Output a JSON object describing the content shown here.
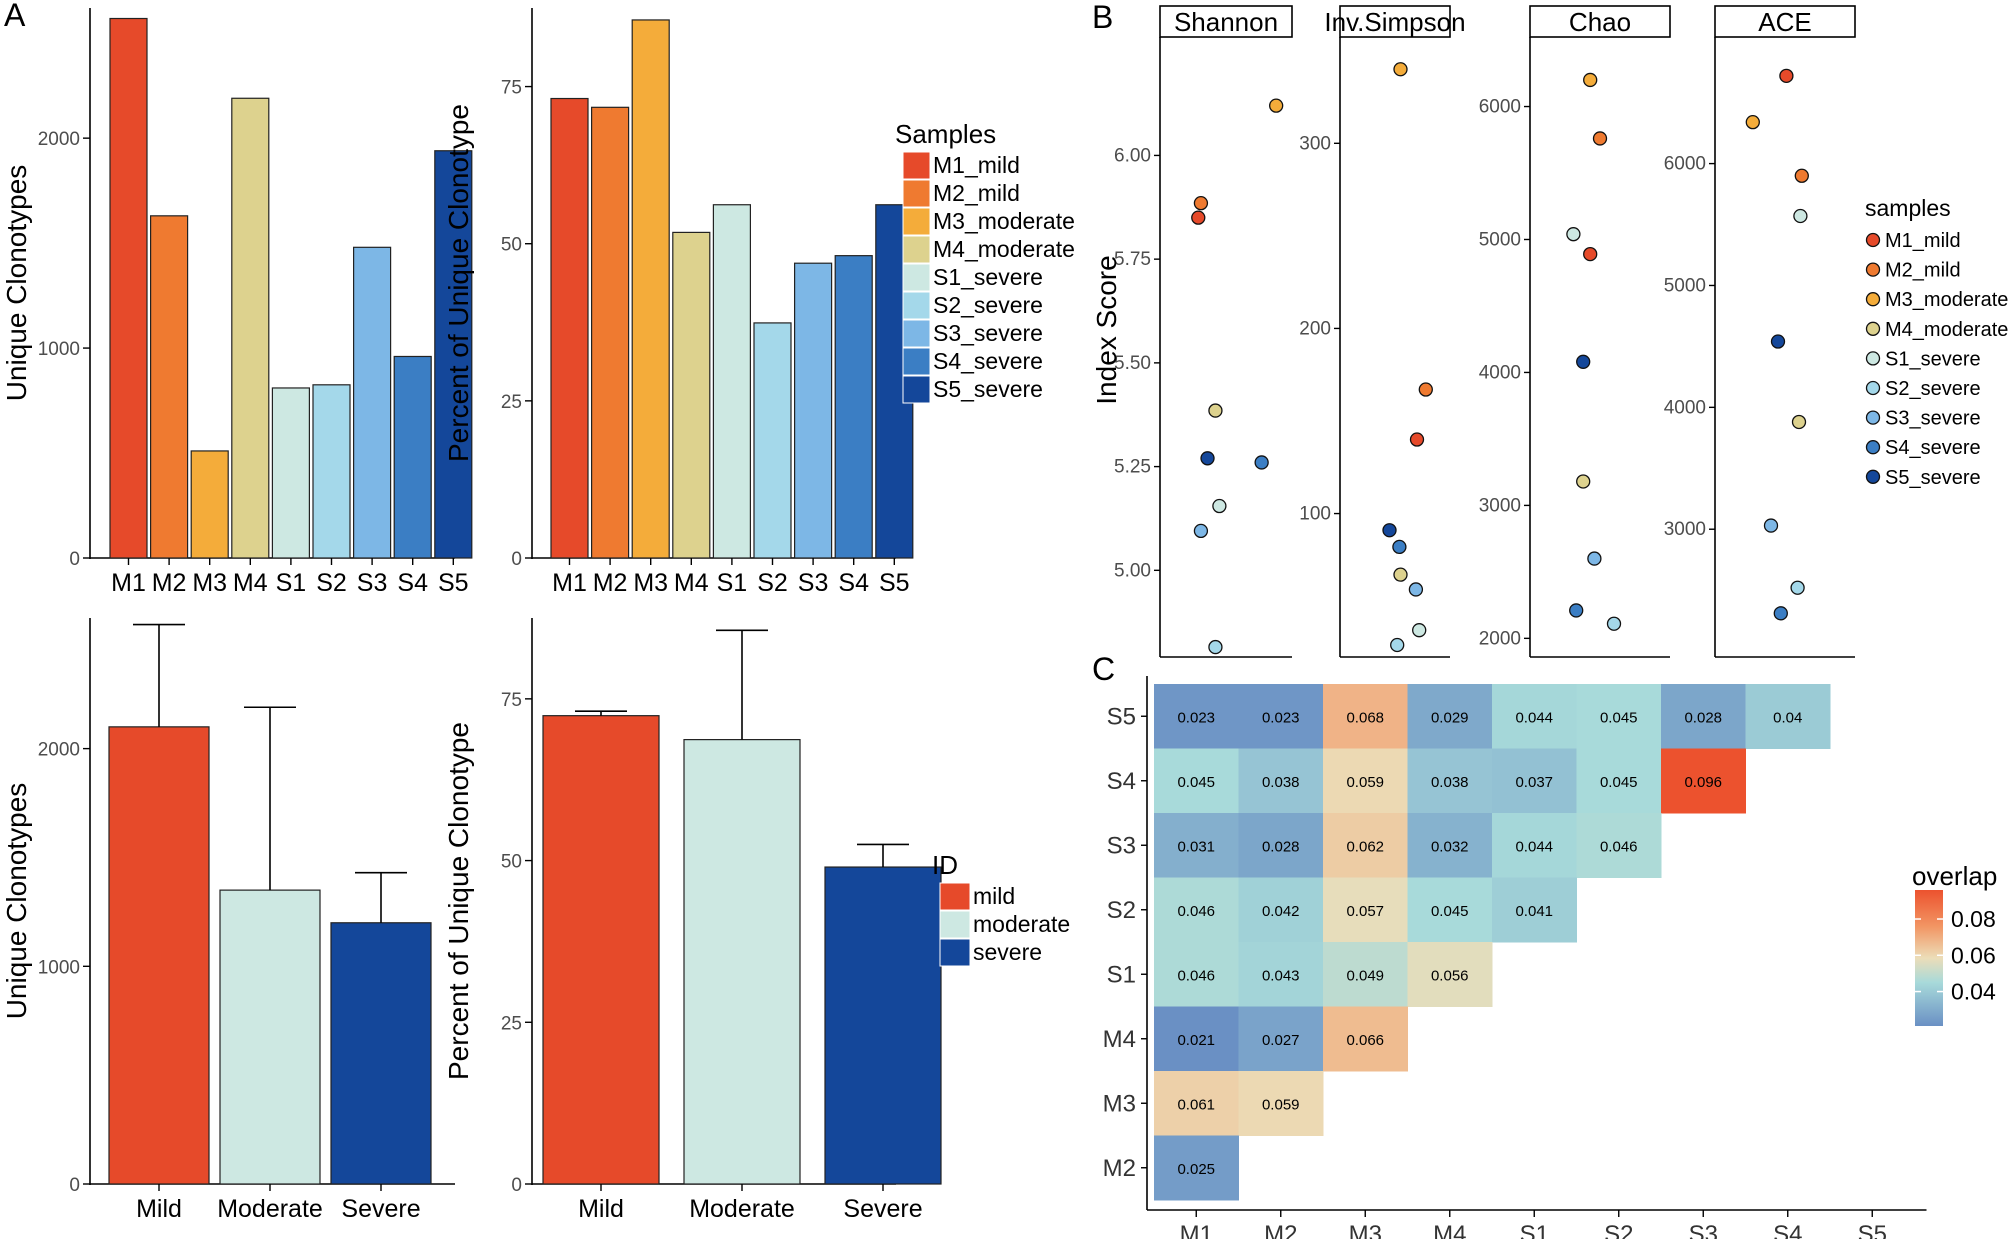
{
  "panels": {
    "A": "A",
    "B": "B",
    "C": "C"
  },
  "colors": {
    "M1_mild": "#e64a2a",
    "M2_mild": "#ef7a30",
    "M3_moderate": "#f4ac3a",
    "M4_moderate": "#ddd28e",
    "S1_severe": "#cde8e2",
    "S2_severe": "#a4d8ea",
    "S3_severe": "#7db7e6",
    "S4_severe": "#3b7ec4",
    "S5_severe": "#14479a",
    "mild": "#e64a2a",
    "moderate": "#cde8e2",
    "severe": "#14479a"
  },
  "chart_data": [
    {
      "id": "A1",
      "type": "bar",
      "categories": [
        "M1",
        "M2",
        "M3",
        "M4",
        "S1",
        "S2",
        "S3",
        "S4",
        "S5"
      ],
      "series_keys": [
        "M1_mild",
        "M2_mild",
        "M3_moderate",
        "M4_moderate",
        "S1_severe",
        "S2_severe",
        "S3_severe",
        "S4_severe",
        "S5_severe"
      ],
      "values": [
        2570,
        1630,
        510,
        2190,
        810,
        825,
        1480,
        960,
        1940
      ],
      "ylabel": "Unique Clonotypes",
      "ylim": [
        0,
        2620
      ],
      "yticks": [
        0,
        1000,
        2000
      ]
    },
    {
      "id": "A2",
      "type": "bar",
      "categories": [
        "M1",
        "M2",
        "M3",
        "M4",
        "S1",
        "S2",
        "S3",
        "S4",
        "S5"
      ],
      "series_keys": [
        "M1_mild",
        "M2_mild",
        "M3_moderate",
        "M4_moderate",
        "S1_severe",
        "S2_severe",
        "S3_severe",
        "S4_severe",
        "S5_severe"
      ],
      "values": [
        73.1,
        71.7,
        85.6,
        51.8,
        56.2,
        37.4,
        46.9,
        48.1,
        56.2
      ],
      "ylabel": "Percent of Unique Clonotype",
      "ylim": [
        0,
        87.5
      ],
      "yticks": [
        0,
        25,
        50,
        75
      ],
      "legend_title": "Samples",
      "legend_labels": [
        "M1_mild",
        "M2_mild",
        "M3_moderate",
        "M4_moderate",
        "S1_severe",
        "S2_severe",
        "S3_severe",
        "S4_severe",
        "S5_severe"
      ]
    },
    {
      "id": "A3",
      "type": "bar",
      "categories": [
        "Mild",
        "Moderate",
        "Severe"
      ],
      "series_keys": [
        "mild",
        "moderate",
        "severe"
      ],
      "values": [
        2100,
        1350,
        1200
      ],
      "error_upper": [
        2570,
        2190,
        1430
      ],
      "ylabel": "Unique Clonotypes",
      "ylim": [
        0,
        2600
      ],
      "yticks": [
        0,
        1000,
        2000
      ]
    },
    {
      "id": "A4",
      "type": "bar",
      "categories": [
        "Mild",
        "Moderate",
        "Severe"
      ],
      "series_keys": [
        "mild",
        "moderate",
        "severe"
      ],
      "values": [
        72.4,
        68.7,
        49.0
      ],
      "error_upper": [
        73.1,
        85.6,
        52.5
      ],
      "ylabel": "Percent of Unique Clonotype",
      "ylim": [
        0,
        87.5
      ],
      "yticks": [
        0,
        25,
        50,
        75
      ],
      "legend_title": "ID",
      "legend_labels": [
        "mild",
        "moderate",
        "severe"
      ]
    },
    {
      "id": "B",
      "type": "scatter",
      "ylabel": "Index Score",
      "legend_title": "samples",
      "legend_labels": [
        "M1_mild",
        "M2_mild",
        "M3_moderate",
        "M4_moderate",
        "S1_severe",
        "S2_severe",
        "S3_severe",
        "S4_severe",
        "S5_severe"
      ],
      "facets": [
        {
          "title": "Shannon",
          "ylim": [
            4.82,
            6.23
          ],
          "yticks": [
            5.0,
            5.25,
            5.5,
            5.75,
            6.0
          ],
          "ytick_labels": [
            "5.00",
            "5.25",
            "5.50",
            "5.75",
            "6.00"
          ],
          "points": [
            {
              "key": "M1_mild",
              "x": 0.29,
              "y": 5.85
            },
            {
              "key": "M2_mild",
              "x": 0.31,
              "y": 5.885
            },
            {
              "key": "M3_moderate",
              "x": 0.88,
              "y": 6.12
            },
            {
              "key": "M4_moderate",
              "x": 0.42,
              "y": 5.385
            },
            {
              "key": "S1_severe",
              "x": 0.45,
              "y": 5.155
            },
            {
              "key": "S2_severe",
              "x": 0.42,
              "y": 4.815
            },
            {
              "key": "S3_severe",
              "x": 0.31,
              "y": 5.095
            },
            {
              "key": "S4_severe",
              "x": 0.77,
              "y": 5.26
            },
            {
              "key": "S5_severe",
              "x": 0.36,
              "y": 5.27
            }
          ]
        },
        {
          "title": "Inv.Simpson",
          "ylim": [
            29,
            345
          ],
          "yticks": [
            100,
            200,
            300
          ],
          "ytick_labels": [
            "100",
            "200",
            "300"
          ],
          "points": [
            {
              "key": "M1_mild",
              "x": 0.7,
              "y": 140
            },
            {
              "key": "M2_mild",
              "x": 0.78,
              "y": 167
            },
            {
              "key": "M3_moderate",
              "x": 0.55,
              "y": 340
            },
            {
              "key": "M4_moderate",
              "x": 0.55,
              "y": 67
            },
            {
              "key": "S1_severe",
              "x": 0.72,
              "y": 37
            },
            {
              "key": "S2_severe",
              "x": 0.52,
              "y": 29
            },
            {
              "key": "S3_severe",
              "x": 0.69,
              "y": 59
            },
            {
              "key": "S4_severe",
              "x": 0.54,
              "y": 82
            },
            {
              "key": "S5_severe",
              "x": 0.45,
              "y": 91
            }
          ]
        },
        {
          "title": "Chao",
          "ylim": [
            1950,
            6350
          ],
          "yticks": [
            2000,
            3000,
            4000,
            5000,
            6000
          ],
          "ytick_labels": [
            "2000",
            "3000",
            "4000",
            "5000",
            "6000"
          ],
          "points": [
            {
              "key": "M1_mild",
              "x": 0.43,
              "y": 4890
            },
            {
              "key": "M2_mild",
              "x": 0.5,
              "y": 5760
            },
            {
              "key": "M3_moderate",
              "x": 0.43,
              "y": 6200
            },
            {
              "key": "M4_moderate",
              "x": 0.38,
              "y": 3180
            },
            {
              "key": "S1_severe",
              "x": 0.31,
              "y": 5040
            },
            {
              "key": "S2_severe",
              "x": 0.6,
              "y": 2110
            },
            {
              "key": "S3_severe",
              "x": 0.46,
              "y": 2600
            },
            {
              "key": "S4_severe",
              "x": 0.33,
              "y": 2210
            },
            {
              "key": "S5_severe",
              "x": 0.38,
              "y": 4080
            }
          ]
        },
        {
          "title": "ACE",
          "ylim": [
            2050,
            6850
          ],
          "yticks": [
            3000,
            4000,
            5000,
            6000
          ],
          "ytick_labels": [
            "3000",
            "4000",
            "5000",
            "6000"
          ],
          "points": [
            {
              "key": "M1_mild",
              "x": 0.51,
              "y": 6720
            },
            {
              "key": "M2_mild",
              "x": 0.62,
              "y": 5900
            },
            {
              "key": "M3_moderate",
              "x": 0.27,
              "y": 6340
            },
            {
              "key": "M4_moderate",
              "x": 0.6,
              "y": 3880
            },
            {
              "key": "S1_severe",
              "x": 0.61,
              "y": 5570
            },
            {
              "key": "S2_severe",
              "x": 0.59,
              "y": 2520
            },
            {
              "key": "S3_severe",
              "x": 0.4,
              "y": 3030
            },
            {
              "key": "S4_severe",
              "x": 0.47,
              "y": 2310
            },
            {
              "key": "S5_severe",
              "x": 0.45,
              "y": 4540
            }
          ]
        }
      ]
    },
    {
      "id": "C",
      "type": "heatmap",
      "x_labels": [
        "M1",
        "M2",
        "M3",
        "M4",
        "S1",
        "S2",
        "S3",
        "S4",
        "S5"
      ],
      "y_labels": [
        "S5",
        "S4",
        "S3",
        "S2",
        "S1",
        "M4",
        "M3",
        "M2"
      ],
      "rows": [
        [
          "0.023",
          "0.023",
          "0.068",
          "0.029",
          "0.044",
          "0.045",
          "0.028",
          "0.04"
        ],
        [
          "0.045",
          "0.038",
          "0.059",
          "0.038",
          "0.037",
          "0.045",
          "0.096"
        ],
        [
          "0.031",
          "0.028",
          "0.062",
          "0.032",
          "0.044",
          "0.046"
        ],
        [
          "0.046",
          "0.042",
          "0.057",
          "0.045",
          "0.041"
        ],
        [
          "0.046",
          "0.043",
          "0.049",
          "0.056"
        ],
        [
          "0.021",
          "0.027",
          "0.066"
        ],
        [
          "0.061",
          "0.059"
        ],
        [
          "0.025"
        ]
      ],
      "legend_title": "overlap",
      "legend_ticks": [
        "0.08",
        "0.06",
        "0.04"
      ],
      "color_range": [
        0.021,
        0.096
      ]
    }
  ]
}
